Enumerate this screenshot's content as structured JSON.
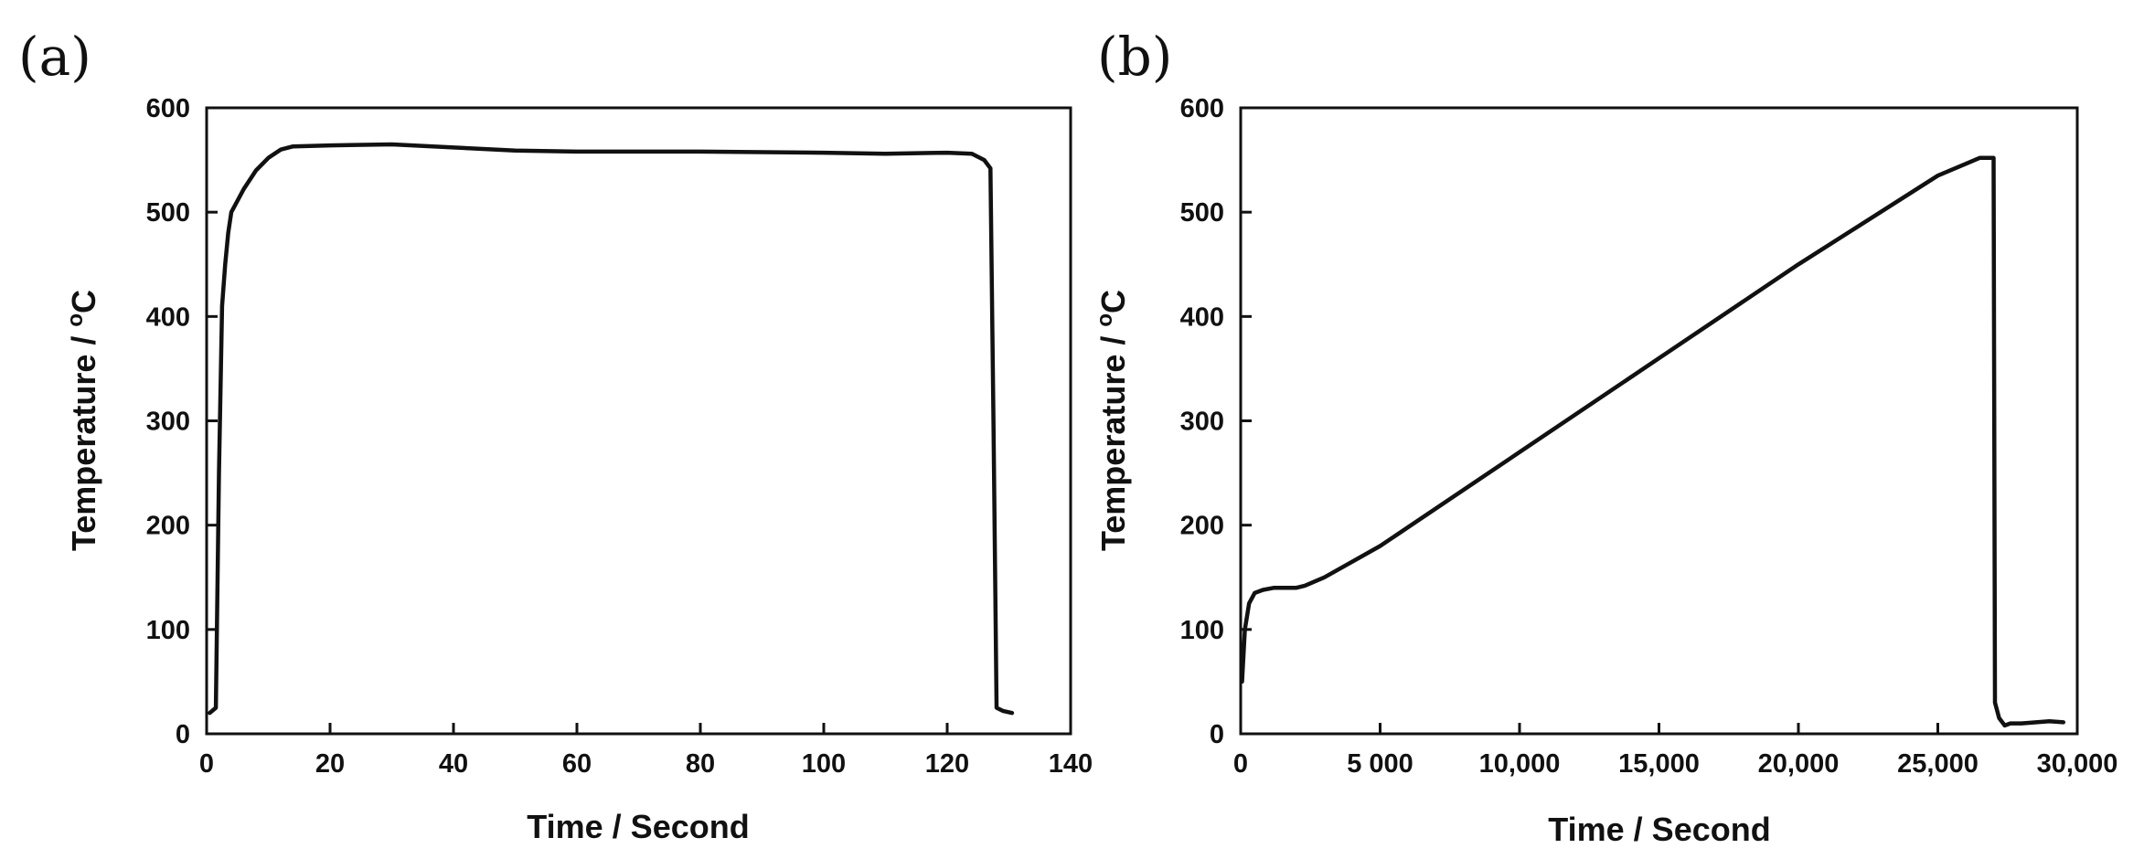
{
  "chart_data": [
    {
      "panel_label": "(a)",
      "type": "line",
      "xlabel": "Time / Second",
      "ylabel_main": "Temperature / ",
      "ylabel_sup": "o",
      "ylabel_unit": "C",
      "xlim": [
        0,
        140
      ],
      "ylim": [
        0,
        600
      ],
      "xticks": [
        0,
        20,
        40,
        60,
        80,
        100,
        120,
        140
      ],
      "xtick_labels": [
        "0",
        "20",
        "40",
        "60",
        "80",
        "100",
        "120",
        "140"
      ],
      "yticks": [
        0,
        100,
        200,
        300,
        400,
        500,
        600
      ],
      "ytick_labels": [
        "0",
        "100",
        "200",
        "300",
        "400",
        "500",
        "600"
      ],
      "grid": false,
      "series": [
        {
          "x": [
            0.5,
            1.5,
            2.0,
            2.5,
            3.0,
            3.5,
            4.0,
            6,
            8,
            10,
            12,
            14,
            20,
            30,
            40,
            50,
            60,
            80,
            100,
            110,
            120,
            124,
            126,
            127,
            127.5,
            128,
            129,
            130.5
          ],
          "y": [
            20,
            25,
            250,
            410,
            450,
            480,
            500,
            522,
            540,
            552,
            560,
            563,
            564,
            565,
            562,
            559,
            558,
            558,
            557,
            556,
            557,
            556,
            550,
            542,
            300,
            25,
            22,
            20
          ]
        }
      ]
    },
    {
      "panel_label": "(b)",
      "type": "line",
      "xlabel": "Time / Second",
      "ylabel_main": "Temperature / ",
      "ylabel_sup": "o",
      "ylabel_unit": "C",
      "xlim": [
        0,
        30000
      ],
      "ylim": [
        0,
        600
      ],
      "xticks": [
        0,
        5000,
        10000,
        15000,
        20000,
        25000,
        30000
      ],
      "xtick_labels": [
        "0",
        "5 000",
        "10,000",
        "15,000",
        "20,000",
        "25,000",
        "30,000"
      ],
      "yticks": [
        0,
        100,
        200,
        300,
        400,
        500,
        600
      ],
      "ytick_labels": [
        "0",
        "100",
        "200",
        "300",
        "400",
        "500",
        "600"
      ],
      "grid": false,
      "series": [
        {
          "x": [
            50,
            150,
            300,
            500,
            800,
            1200,
            2000,
            2300,
            3000,
            5000,
            10000,
            15000,
            20000,
            25000,
            26500,
            27000,
            27050,
            27200,
            27400,
            27600,
            28000,
            29000,
            29500
          ],
          "y": [
            50,
            100,
            125,
            135,
            138,
            140,
            140,
            142,
            150,
            180,
            270,
            360,
            450,
            535,
            552,
            552,
            30,
            15,
            8,
            10,
            10,
            12,
            11
          ]
        }
      ]
    }
  ]
}
